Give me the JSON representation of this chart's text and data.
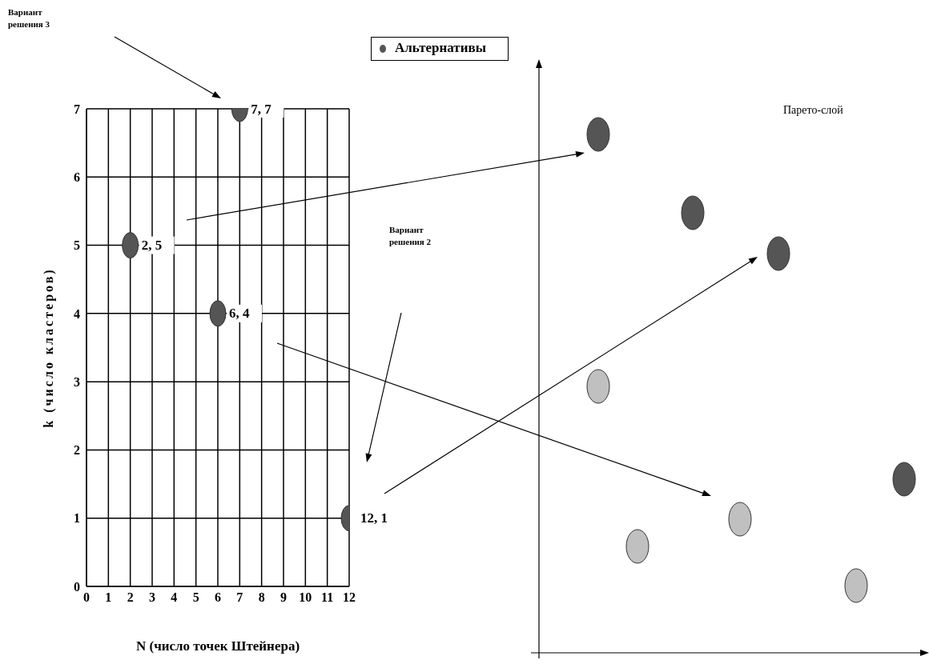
{
  "chart_data": [
    {
      "type": "scatter",
      "xlabel": "N (число точек Штейнера)",
      "ylabel": "k (число кластеров)",
      "xlim": [
        0,
        12
      ],
      "ylim": [
        0,
        7
      ],
      "xticks": [
        0,
        1,
        2,
        3,
        4,
        5,
        6,
        7,
        8,
        9,
        10,
        11,
        12
      ],
      "yticks": [
        0,
        1,
        2,
        3,
        4,
        5,
        6,
        7
      ],
      "grid": true,
      "marker": "circle",
      "series": [
        {
          "color": "#555555",
          "x": [
            7,
            2,
            6,
            12
          ],
          "values": [
            7,
            5,
            4,
            1
          ],
          "value_labels": [
            "7, 7",
            "2, 5",
            "6, 4",
            "12, 1"
          ]
        }
      ],
      "annotations": [
        "Вариант решения 3",
        "Вариант решения 2"
      ]
    },
    {
      "type": "other",
      "annotations": [
        "Альтернативы",
        "Парето-слой"
      ]
    }
  ]
}
